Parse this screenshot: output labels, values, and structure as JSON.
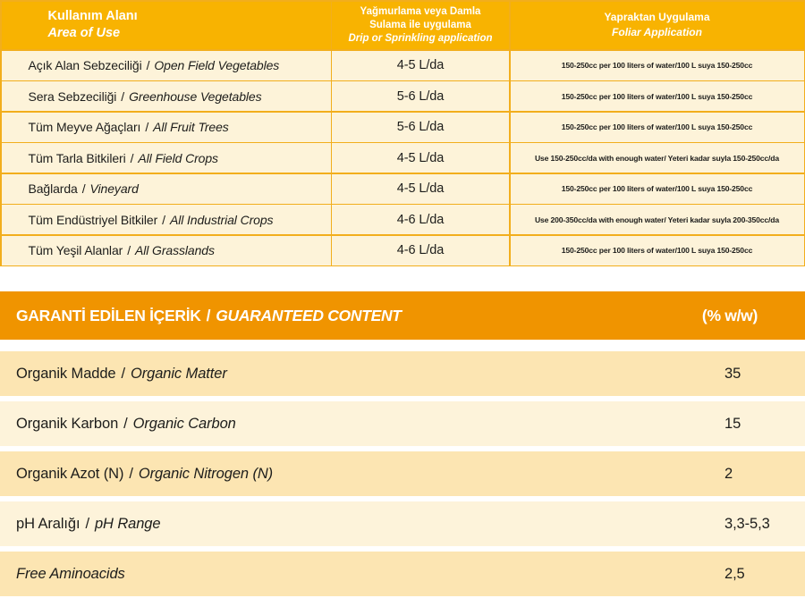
{
  "separator": "/",
  "usage_table": {
    "header": {
      "area": {
        "tr": "Kullanım Alanı",
        "en": "Area of Use"
      },
      "drip": {
        "tr_line1": "Yağmurlama veya Damla",
        "tr_line2": "Sulama ile uygulama",
        "en": "Drip or Sprinkling application"
      },
      "foliar": {
        "tr": "Yapraktan Uygulama",
        "en": "Foliar Application"
      }
    },
    "rows": [
      {
        "tr": "Açık Alan Sebzeciliği",
        "en": "Open Field Vegetables",
        "drip": "4-5 L/da",
        "foliar": "150-250cc per 100 liters of water/100 L suya 150-250cc"
      },
      {
        "tr": "Sera Sebzeciliği",
        "en": "Greenhouse Vegetables",
        "drip": "5-6 L/da",
        "foliar": "150-250cc per 100 liters of water/100 L suya 150-250cc"
      },
      {
        "tr": "Tüm Meyve Ağaçları",
        "en": "All Fruit Trees",
        "drip": "5-6 L/da",
        "foliar": "150-250cc per 100 liters of water/100 L suya 150-250cc"
      },
      {
        "tr": "Tüm Tarla Bitkileri",
        "en": "All Field Crops",
        "drip": "4-5 L/da",
        "foliar": "Use 150-250cc/da with enough water/ Yeteri kadar suyla 150-250cc/da"
      },
      {
        "tr": "Bağlarda",
        "en": "Vineyard",
        "drip": "4-5 L/da",
        "foliar": "150-250cc per 100 liters of water/100 L suya 150-250cc"
      },
      {
        "tr": "Tüm Endüstriyel Bitkiler",
        "en": "All Industrial Crops",
        "drip": "4-6 L/da",
        "foliar": "Use 200-350cc/da with enough water/ Yeteri kadar suyla 200-350cc/da"
      },
      {
        "tr": "Tüm Yeşil Alanlar",
        "en": "All Grasslands",
        "drip": "4-6 L/da",
        "foliar": "150-250cc per 100 liters of water/100 L suya 150-250cc"
      }
    ]
  },
  "content_table": {
    "header": {
      "tr": "GARANTİ EDİLEN İÇERİK",
      "en": "GUARANTEED CONTENT",
      "unit": "(% w/w)"
    },
    "rows": [
      {
        "tr": "Organik Madde",
        "en": "Organic Matter",
        "value": "35"
      },
      {
        "tr": "Organik Karbon",
        "en": "Organic Carbon",
        "value": "15"
      },
      {
        "tr": "Organik Azot (N)",
        "en": "Organic Nitrogen (N)",
        "value": "2"
      },
      {
        "tr": "pH Aralığı",
        "en": "pH Range",
        "value": "3,3-5,3"
      },
      {
        "tr": "",
        "en": "Free Aminoacids",
        "value": "2,5"
      }
    ]
  },
  "colors": {
    "top_header_bg": "#f8b301",
    "bottom_header_bg": "#f09400",
    "grid_line": "#f2ae1c",
    "row_cream": "#fdf3d9",
    "row_tan": "#fce5b2",
    "row_light": "#fdf3da",
    "text": "#1d1d1b"
  }
}
